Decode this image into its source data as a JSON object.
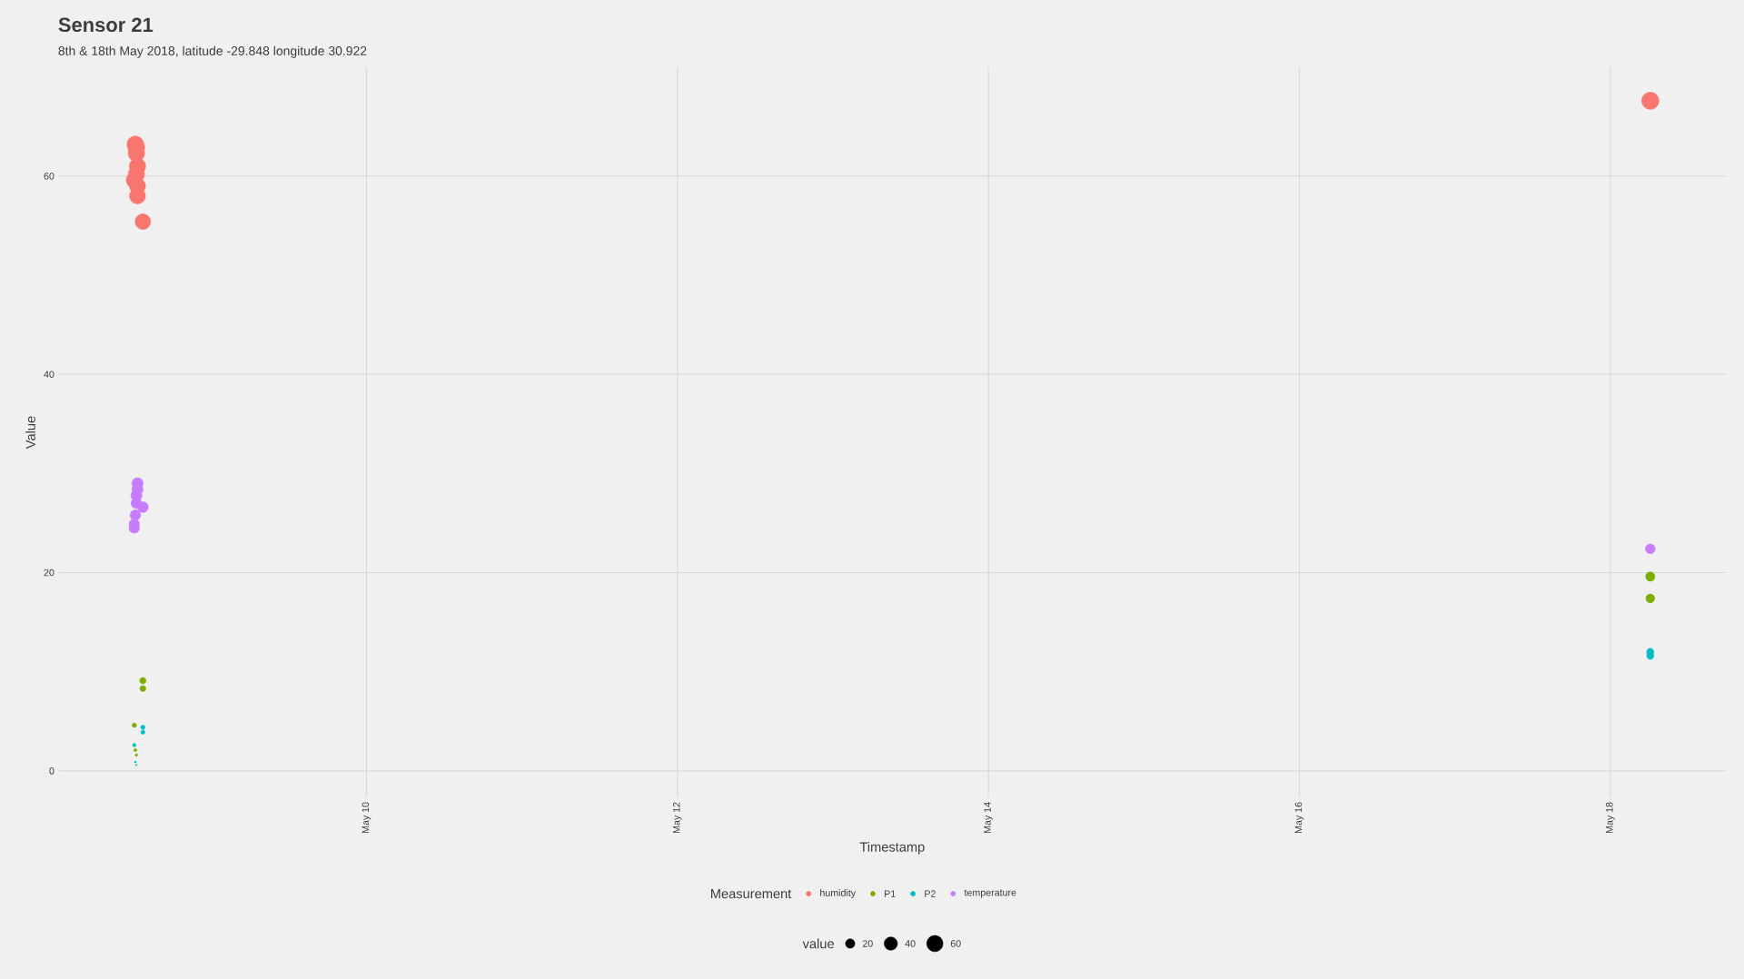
{
  "chart_data": {
    "type": "bubble",
    "title": "Sensor 21",
    "subtitle": "8th & 18th May 2018, latitude -29.848 longitude 30.922",
    "xlabel": "Timestamp",
    "ylabel": "Value",
    "legend_title": "Measurement",
    "annotations": [
      "value"
    ],
    "xlim": [
      "2018-05-08T00:30",
      "2018-05-18T17:50"
    ],
    "xticks": [
      {
        "value": "2018-05-10",
        "label": "May 10"
      },
      {
        "value": "2018-05-12",
        "label": "May 12"
      },
      {
        "value": "2018-05-14",
        "label": "May 14"
      },
      {
        "value": "2018-05-16",
        "label": "May 16"
      },
      {
        "value": "2018-05-18",
        "label": "May 18"
      }
    ],
    "ylim": [
      -2.7,
      71
    ],
    "yticks": [
      0,
      20,
      40,
      60
    ],
    "size_legend": [
      20,
      40,
      60
    ],
    "grid": true,
    "legend": "bottom",
    "marker": "circle",
    "series": [
      {
        "name": "humidity",
        "color": "#f8766d",
        "x": [
          "2018-05-08T12:20",
          "2018-05-08T12:30",
          "2018-05-08T12:30",
          "2018-05-08T12:40",
          "2018-05-08T12:10",
          "2018-05-08T12:30",
          "2018-05-08T12:40",
          "2018-05-08T12:40",
          "2018-05-08T13:30",
          "2018-05-18T06:10"
        ],
        "values": [
          63.2,
          62.9,
          62.3,
          61.0,
          59.6,
          60.2,
          59.0,
          58.0,
          55.4,
          67.6
        ],
        "sizes": [
          63.2,
          62.9,
          62.3,
          61.0,
          59.6,
          60.2,
          59.0,
          58.0,
          55.4,
          67.6
        ]
      },
      {
        "name": "P1",
        "color": "#7cae00",
        "x": [
          "2018-05-08T13:30",
          "2018-05-08T13:30",
          "2018-05-08T12:10",
          "2018-05-08T12:20",
          "2018-05-08T12:30",
          "2018-05-18T06:10",
          "2018-05-18T06:10"
        ],
        "values": [
          9.1,
          8.3,
          4.6,
          2.1,
          1.6,
          19.6,
          17.4
        ],
        "sizes": [
          9.1,
          8.3,
          4.6,
          2.1,
          1.6,
          19.6,
          17.4
        ]
      },
      {
        "name": "P2",
        "color": "#00bfc4",
        "x": [
          "2018-05-08T13:30",
          "2018-05-08T13:30",
          "2018-05-08T12:10",
          "2018-05-08T12:20",
          "2018-05-08T12:30",
          "2018-05-18T06:10",
          "2018-05-18T06:10"
        ],
        "values": [
          4.4,
          3.9,
          2.6,
          0.9,
          0.6,
          12.0,
          11.6
        ],
        "sizes": [
          4.4,
          3.9,
          2.6,
          0.9,
          0.6,
          12.0,
          11.6
        ]
      },
      {
        "name": "temperature",
        "color": "#c77cff",
        "x": [
          "2018-05-08T12:40",
          "2018-05-08T12:40",
          "2018-05-08T12:30",
          "2018-05-08T12:30",
          "2018-05-08T13:30",
          "2018-05-08T12:20",
          "2018-05-08T12:10",
          "2018-05-08T12:10",
          "2018-05-18T06:10"
        ],
        "values": [
          29.0,
          28.4,
          27.8,
          27.0,
          26.6,
          25.8,
          24.9,
          24.5,
          22.4
        ],
        "sizes": [
          29.0,
          28.4,
          27.8,
          27.0,
          26.6,
          25.8,
          24.9,
          24.5,
          22.4
        ]
      }
    ]
  }
}
